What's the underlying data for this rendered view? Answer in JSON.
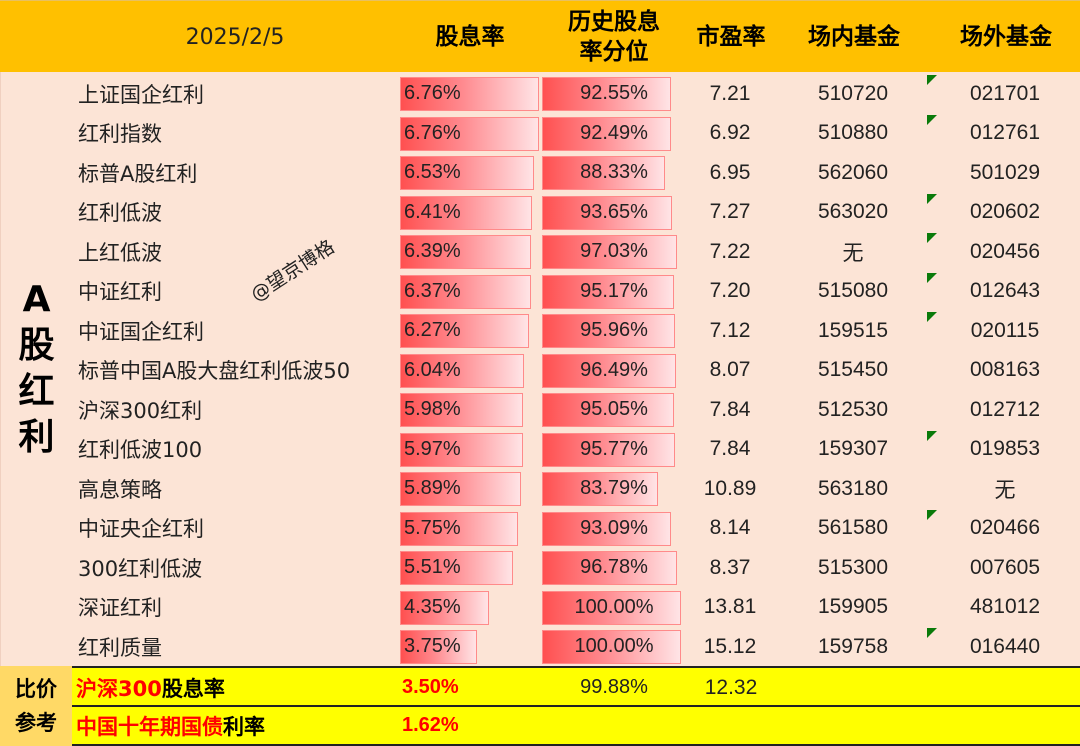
{
  "header": {
    "date": "2025/2/5",
    "columns": {
      "dividend_yield": "股息率",
      "hist_percentile_line1": "历史股息",
      "hist_percentile_line2": "率分位",
      "pe": "市盈率",
      "onsite_fund": "场内基金",
      "offsite_fund": "场外基金"
    }
  },
  "sidebar": {
    "chars": [
      "A",
      "股",
      "红",
      "利"
    ]
  },
  "watermark": "@望京博格",
  "rows": [
    {
      "name": "上证国企红利",
      "yield": "6.76%",
      "yield_val": 6.76,
      "pct": "92.55%",
      "pct_val": 92.55,
      "pe": "7.21",
      "onsite": "510720",
      "offsite": "021701",
      "marker": true
    },
    {
      "name": "红利指数",
      "yield": "6.76%",
      "yield_val": 6.76,
      "pct": "92.49%",
      "pct_val": 92.49,
      "pe": "6.92",
      "onsite": "510880",
      "offsite": "012761",
      "marker": true
    },
    {
      "name": "标普A股红利",
      "yield": "6.53%",
      "yield_val": 6.53,
      "pct": "88.33%",
      "pct_val": 88.33,
      "pe": "6.95",
      "onsite": "562060",
      "offsite": "501029",
      "marker": false
    },
    {
      "name": "红利低波",
      "yield": "6.41%",
      "yield_val": 6.41,
      "pct": "93.65%",
      "pct_val": 93.65,
      "pe": "7.27",
      "onsite": "563020",
      "offsite": "020602",
      "marker": true
    },
    {
      "name": "上红低波",
      "yield": "6.39%",
      "yield_val": 6.39,
      "pct": "97.03%",
      "pct_val": 97.03,
      "pe": "7.22",
      "onsite": "无",
      "offsite": "020456",
      "marker": true
    },
    {
      "name": "中证红利",
      "yield": "6.37%",
      "yield_val": 6.37,
      "pct": "95.17%",
      "pct_val": 95.17,
      "pe": "7.20",
      "onsite": "515080",
      "offsite": "012643",
      "marker": true
    },
    {
      "name": "中证国企红利",
      "yield": "6.27%",
      "yield_val": 6.27,
      "pct": "95.96%",
      "pct_val": 95.96,
      "pe": "7.12",
      "onsite": "159515",
      "offsite": "020115",
      "marker": true
    },
    {
      "name": "标普中国A股大盘红利低波50",
      "yield": "6.04%",
      "yield_val": 6.04,
      "pct": "96.49%",
      "pct_val": 96.49,
      "pe": "8.07",
      "onsite": "515450",
      "offsite": "008163",
      "marker": false
    },
    {
      "name": "沪深300红利",
      "yield": "5.98%",
      "yield_val": 5.98,
      "pct": "95.05%",
      "pct_val": 95.05,
      "pe": "7.84",
      "onsite": "512530",
      "offsite": "012712",
      "marker": false
    },
    {
      "name": "红利低波100",
      "yield": "5.97%",
      "yield_val": 5.97,
      "pct": "95.77%",
      "pct_val": 95.77,
      "pe": "7.84",
      "onsite": "159307",
      "offsite": "019853",
      "marker": true
    },
    {
      "name": "高息策略",
      "yield": "5.89%",
      "yield_val": 5.89,
      "pct": "83.79%",
      "pct_val": 83.79,
      "pe": "10.89",
      "onsite": "563180",
      "offsite": "无",
      "marker": false
    },
    {
      "name": "中证央企红利",
      "yield": "5.75%",
      "yield_val": 5.75,
      "pct": "93.09%",
      "pct_val": 93.09,
      "pe": "8.14",
      "onsite": "561580",
      "offsite": "020466",
      "marker": true
    },
    {
      "name": "300红利低波",
      "yield": "5.51%",
      "yield_val": 5.51,
      "pct": "96.78%",
      "pct_val": 96.78,
      "pe": "8.37",
      "onsite": "515300",
      "offsite": "007605",
      "marker": false
    },
    {
      "name": "深证红利",
      "yield": "4.35%",
      "yield_val": 4.35,
      "pct": "100.00%",
      "pct_val": 100.0,
      "pe": "13.81",
      "onsite": "159905",
      "offsite": "481012",
      "marker": false
    },
    {
      "name": "红利质量",
      "yield": "3.75%",
      "yield_val": 3.75,
      "pct": "100.00%",
      "pct_val": 100.0,
      "pe": "15.12",
      "onsite": "159758",
      "offsite": "016440",
      "marker": true
    }
  ],
  "reference": {
    "label_line1": "比价",
    "label_line2": "参考",
    "rows": [
      {
        "title_red": "沪深300",
        "title_black": " 股息率",
        "value": "3.50%",
        "pct": "99.88%",
        "pe": "12.32"
      },
      {
        "title_red": "中国十年期国债",
        "title_black": " 利率",
        "value": "1.62%"
      }
    ]
  },
  "colors": {
    "header_bg": "#FFC000",
    "body_bg": "#FCE4D6",
    "bar_start": "#FF5050",
    "bar_end": "#FFE4E6",
    "reference_bg": "#FFFF00",
    "reference_label_bg": "#FFD966",
    "reference_text_red": "#FF0000",
    "marker_green": "#0A7A0A"
  }
}
